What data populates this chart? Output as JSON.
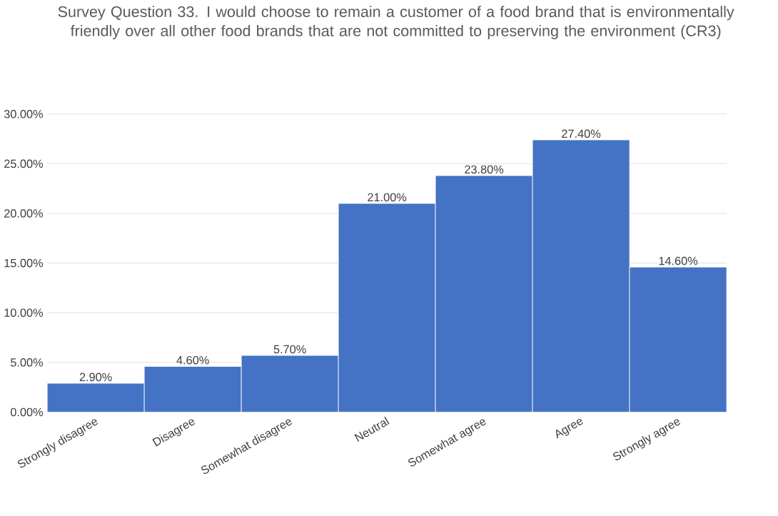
{
  "chart_data": {
    "type": "bar",
    "title": "Survey Question 33. I would choose to remain a customer of a food brand that is environmentally friendly over all other food brands that are not committed to preserving the environment (CR3)",
    "categories": [
      "Strongly disagree",
      "Disagree",
      "Somewhat disagree",
      "Neutral",
      "Somewhat agree",
      "Agree",
      "Strongly agree"
    ],
    "values": [
      2.9,
      4.6,
      5.7,
      21.0,
      23.8,
      27.4,
      14.6
    ],
    "value_labels": [
      "2.90%",
      "4.60%",
      "5.70%",
      "21.00%",
      "23.80%",
      "27.40%",
      "14.60%"
    ],
    "color": "#4472c4",
    "ylim": [
      0,
      30
    ],
    "yticks": [
      {
        "value": 0,
        "label": "0.00%"
      },
      {
        "value": 5,
        "label": "5.00%"
      },
      {
        "value": 10,
        "label": "10.00%"
      },
      {
        "value": 15,
        "label": "15.00%"
      },
      {
        "value": 20,
        "label": "20.00%"
      },
      {
        "value": 25,
        "label": "25.00%"
      },
      {
        "value": 30,
        "label": "30.00%"
      }
    ],
    "grid": "y"
  }
}
